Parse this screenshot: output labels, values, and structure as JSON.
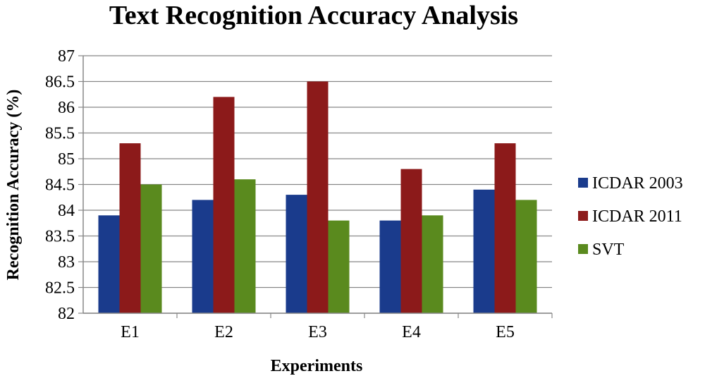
{
  "chart_data": {
    "type": "bar",
    "title": "Text Recognition Accuracy Analysis",
    "xlabel": "Experiments",
    "ylabel": "Recognition Accuracy (%)",
    "ylim": [
      82,
      87
    ],
    "yticks": [
      "82",
      "82.5",
      "83",
      "83.5",
      "84",
      "84.5",
      "85",
      "85.5",
      "86",
      "86.5",
      "87"
    ],
    "grid": true,
    "legend_position": "right",
    "categories": [
      "E1",
      "E2",
      "E3",
      "E4",
      "E5"
    ],
    "series": [
      {
        "name": "ICDAR 2003",
        "color": "#1a3b8c",
        "values": [
          83.9,
          84.2,
          84.3,
          83.8,
          84.4
        ]
      },
      {
        "name": "ICDAR 2011",
        "color": "#8c1a1a",
        "values": [
          85.3,
          86.2,
          86.5,
          84.8,
          85.3
        ]
      },
      {
        "name": "SVT",
        "color": "#5a8a1e",
        "values": [
          84.5,
          84.6,
          83.8,
          83.9,
          84.2
        ]
      }
    ]
  }
}
